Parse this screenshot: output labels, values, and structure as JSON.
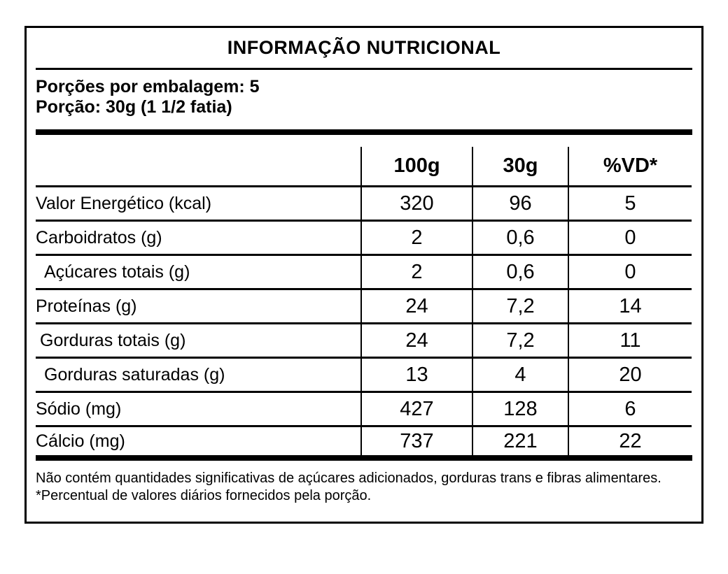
{
  "title": "INFORMAÇÃO NUTRICIONAL",
  "serving": {
    "per_package": "Porções por embalagem: 5",
    "portion": "Porção: 30g (1 1/2 fatia)"
  },
  "table": {
    "headers": [
      "100g",
      "30g",
      "%VD*"
    ],
    "rows": [
      {
        "label": "Valor Energético (kcal)",
        "v100": "320",
        "v30": "96",
        "vd": "5"
      },
      {
        "label": "Carboidratos (g)",
        "v100": "2",
        "v30": "0,6",
        "vd": "0"
      },
      {
        "label": "Açúcares totais (g)",
        "v100": "2",
        "v30": "0,6",
        "vd": "0"
      },
      {
        "label": "Proteínas (g)",
        "v100": "24",
        "v30": "7,2",
        "vd": "14"
      },
      {
        "label": "Gorduras totais (g)",
        "v100": "24",
        "v30": "7,2",
        "vd": "11"
      },
      {
        "label": "Gorduras saturadas (g)",
        "v100": "13",
        "v30": "4",
        "vd": "20"
      },
      {
        "label": "Sódio (mg)",
        "v100": "427",
        "v30": "128",
        "vd": "6"
      },
      {
        "label": "Cálcio (mg)",
        "v100": "737",
        "v30": "221",
        "vd": "22"
      }
    ]
  },
  "footnotes": [
    "Não contém quantidades significativas de açúcares adicionados, gorduras trans e fibras alimentares.",
    "*Percentual de valores diários fornecidos pela porção."
  ],
  "colors": {
    "text": "#000000",
    "background": "#ffffff",
    "rules": "#000000"
  }
}
